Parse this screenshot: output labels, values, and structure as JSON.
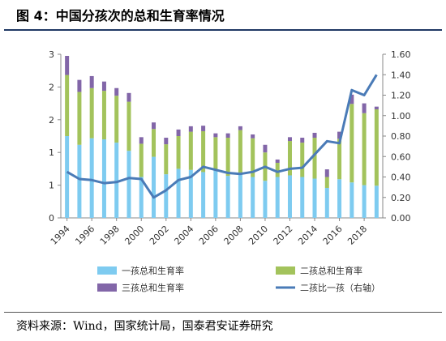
{
  "title": "图 4：中国分孩次的总和生育率情况",
  "source": "资料来源：Wind，国家统计局，国泰君安证券研究",
  "colors": {
    "first": "#7ecbf0",
    "second": "#a3c35c",
    "third": "#8266a8",
    "ratio": "#4a7bb7",
    "axis": "#888888",
    "rule": "#1f3864"
  },
  "chart_data": {
    "type": "bar",
    "stacked": true,
    "x": [
      1994,
      1995,
      1996,
      1997,
      1998,
      1999,
      2000,
      2001,
      2002,
      2003,
      2004,
      2005,
      2006,
      2007,
      2008,
      2009,
      2010,
      2011,
      2012,
      2013,
      2014,
      2015,
      2016,
      2017,
      2018,
      2019
    ],
    "xticks": [
      "1994",
      "1996",
      "1998",
      "2000",
      "2002",
      "2004",
      "2006",
      "2008",
      "2010",
      "2012",
      "2014",
      "2016",
      "2018"
    ],
    "series": [
      {
        "name": "一孩总和生育率",
        "axis": "left",
        "kind": "bar",
        "values": [
          1.5,
          1.34,
          1.46,
          1.44,
          1.38,
          1.23,
          0.75,
          1.12,
          0.8,
          0.9,
          0.88,
          0.84,
          0.88,
          0.77,
          0.83,
          0.75,
          0.68,
          0.75,
          0.78,
          0.75,
          0.72,
          0.55,
          0.71,
          0.65,
          0.6,
          0.59
        ]
      },
      {
        "name": "二孩总和生育率",
        "axis": "left",
        "kind": "bar",
        "values": [
          1.12,
          0.97,
          0.92,
          0.89,
          0.86,
          0.9,
          0.61,
          0.51,
          0.55,
          0.6,
          0.7,
          0.75,
          0.6,
          0.7,
          0.78,
          0.71,
          0.52,
          0.26,
          0.63,
          0.63,
          0.75,
          0.2,
          0.74,
          1.44,
          1.32,
          1.4
        ]
      },
      {
        "name": "三孩总和生育率",
        "axis": "left",
        "kind": "bar",
        "values": [
          0.35,
          0.22,
          0.22,
          0.17,
          0.14,
          0.16,
          0.12,
          0.12,
          0.12,
          0.12,
          0.1,
          0.1,
          0.07,
          0.08,
          0.07,
          0.07,
          0.14,
          0.06,
          0.07,
          0.09,
          0.09,
          0.14,
          0.13,
          0.17,
          0.18,
          0.05
        ]
      },
      {
        "name": "二孩比一孩（右轴）",
        "axis": "right",
        "kind": "line",
        "values": [
          0.45,
          0.38,
          0.37,
          0.34,
          0.35,
          0.39,
          0.38,
          0.2,
          0.27,
          0.37,
          0.4,
          0.5,
          0.47,
          0.44,
          0.43,
          0.45,
          0.5,
          0.45,
          0.48,
          0.49,
          0.62,
          0.75,
          0.73,
          1.25,
          1.2,
          1.4
        ]
      }
    ],
    "left_axis": {
      "min": 0,
      "max": 3,
      "ticks": [
        "0",
        "1",
        "1",
        "2",
        "2",
        "3"
      ],
      "step": 0.6
    },
    "right_axis": {
      "min": 0,
      "max": 1.6,
      "ticks": [
        "0.00",
        "0.20",
        "0.40",
        "0.60",
        "0.80",
        "1.00",
        "1.20",
        "1.40",
        "1.60"
      ]
    },
    "legend": {
      "position": "bottom",
      "items": [
        {
          "label": "一孩总和生育率",
          "series": 0
        },
        {
          "label": "二孩总和生育率",
          "series": 1
        },
        {
          "label": "三孩总和生育率",
          "series": 2
        },
        {
          "label": "二孩比一孩（右轴）",
          "series": 3
        }
      ]
    },
    "grid": false
  }
}
